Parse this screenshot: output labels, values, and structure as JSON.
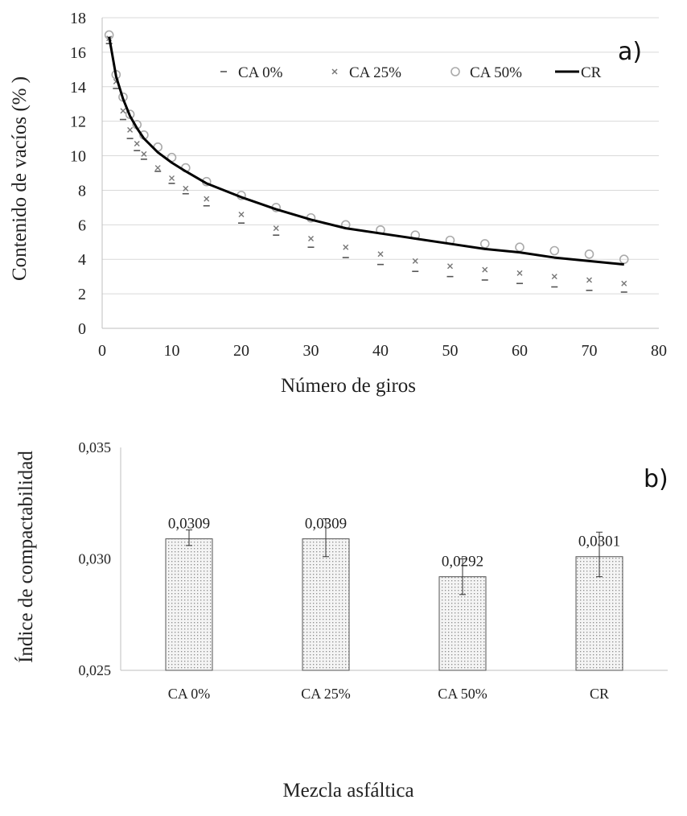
{
  "chart_data": [
    {
      "type": "line",
      "panel_label": "a)",
      "xlabel": "Número de giros",
      "ylabel": "Contenido de vacíos (% )",
      "xlim": [
        0,
        80
      ],
      "ylim": [
        0,
        18
      ],
      "xticks": [
        "0",
        "10",
        "20",
        "30",
        "40",
        "50",
        "60",
        "70",
        "80"
      ],
      "yticks": [
        "0",
        "2",
        "4",
        "6",
        "8",
        "10",
        "12",
        "14",
        "16",
        "18"
      ],
      "grid": "horizontal",
      "legend": "top",
      "series": [
        {
          "name": "CA 0%",
          "marker": "dash",
          "color": "#555555",
          "x": [
            1,
            2,
            3,
            4,
            5,
            6,
            8,
            10,
            12,
            15,
            20,
            25,
            30,
            35,
            40,
            45,
            50,
            55,
            60,
            65,
            70,
            75
          ],
          "values": [
            16.5,
            13.9,
            12.1,
            11.0,
            10.3,
            9.8,
            9.1,
            8.4,
            7.8,
            7.1,
            6.1,
            5.4,
            4.7,
            4.1,
            3.7,
            3.3,
            3.0,
            2.8,
            2.6,
            2.4,
            2.2,
            2.1
          ]
        },
        {
          "name": "CA 25%",
          "marker": "x",
          "color": "#777777",
          "x": [
            1,
            2,
            3,
            4,
            5,
            6,
            8,
            10,
            12,
            15,
            20,
            25,
            30,
            35,
            40,
            45,
            50,
            55,
            60,
            65,
            70,
            75
          ],
          "values": [
            16.8,
            14.3,
            12.6,
            11.5,
            10.7,
            10.1,
            9.3,
            8.7,
            8.1,
            7.5,
            6.6,
            5.8,
            5.2,
            4.7,
            4.3,
            3.9,
            3.6,
            3.4,
            3.2,
            3.0,
            2.8,
            2.6
          ]
        },
        {
          "name": "CA 50%",
          "marker": "circle",
          "color": "#aaaaaa",
          "x": [
            1,
            2,
            3,
            4,
            5,
            6,
            8,
            10,
            12,
            15,
            20,
            25,
            30,
            35,
            40,
            45,
            50,
            55,
            60,
            65,
            70,
            75
          ],
          "values": [
            17.0,
            14.7,
            13.4,
            12.4,
            11.8,
            11.2,
            10.5,
            9.9,
            9.3,
            8.5,
            7.7,
            7.0,
            6.4,
            6.0,
            5.7,
            5.4,
            5.1,
            4.9,
            4.7,
            4.5,
            4.3,
            4.0
          ]
        },
        {
          "name": "CR",
          "marker": "line",
          "color": "#000000",
          "x": [
            1,
            2,
            3,
            4,
            5,
            6,
            8,
            10,
            12,
            15,
            20,
            25,
            30,
            35,
            40,
            45,
            50,
            55,
            60,
            65,
            70,
            75
          ],
          "values": [
            16.9,
            14.6,
            13.3,
            12.3,
            11.6,
            11.0,
            10.2,
            9.6,
            9.1,
            8.4,
            7.6,
            6.9,
            6.3,
            5.8,
            5.5,
            5.2,
            4.9,
            4.6,
            4.4,
            4.1,
            3.9,
            3.7
          ]
        }
      ]
    },
    {
      "type": "bar",
      "panel_label": "b)",
      "xlabel": "Mezcla asfáltica",
      "ylabel": "Índice de compactabilidad",
      "ylim": [
        0.025,
        0.035
      ],
      "yticks": [
        "0,025",
        "0,030",
        "0,035"
      ],
      "categories": [
        "CA 0%",
        "CA 25%",
        "CA 50%",
        "CR"
      ],
      "values": [
        0.0309,
        0.0309,
        0.0292,
        0.0301
      ],
      "value_labels": [
        "0,0309",
        "0,0309",
        "0,0292",
        "0,0301"
      ],
      "error_bars": [
        [
          0.0306,
          0.0313
        ],
        [
          0.0301,
          0.0318
        ],
        [
          0.0284,
          0.03
        ],
        [
          0.0292,
          0.0312
        ]
      ],
      "bar_fill": "#d9d9d9",
      "bar_edge": "#555555"
    }
  ]
}
